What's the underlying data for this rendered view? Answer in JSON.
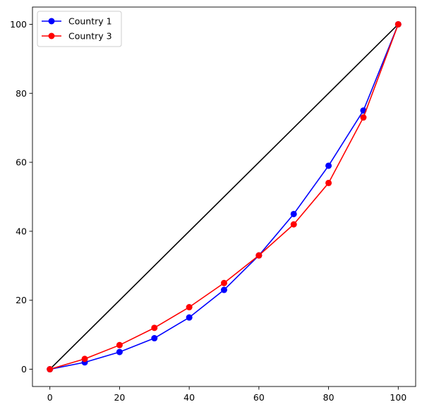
{
  "chart_data": {
    "type": "line",
    "title": "",
    "xlabel": "",
    "ylabel": "",
    "xlim": [
      -5,
      105
    ],
    "ylim": [
      -5,
      105
    ],
    "x_ticks": [
      0,
      20,
      40,
      60,
      80,
      100
    ],
    "y_ticks": [
      0,
      20,
      40,
      60,
      80,
      100
    ],
    "grid": false,
    "legend_position": "top-left",
    "equality_line": {
      "x": [
        0,
        100
      ],
      "y": [
        0,
        100
      ],
      "color": "#000000"
    },
    "series": [
      {
        "name": "Country 1",
        "color": "#0000ff",
        "marker": "circle",
        "x": [
          0,
          10,
          20,
          30,
          40,
          50,
          60,
          70,
          80,
          90,
          100
        ],
        "y": [
          0,
          2,
          5,
          9,
          15,
          23,
          33,
          45,
          59,
          75,
          100
        ]
      },
      {
        "name": "Country 3",
        "color": "#ff0000",
        "marker": "circle",
        "x": [
          0,
          10,
          20,
          30,
          40,
          50,
          60,
          70,
          80,
          90,
          100
        ],
        "y": [
          0,
          3,
          7,
          12,
          18,
          25,
          33,
          42,
          54,
          73,
          100
        ]
      }
    ]
  }
}
